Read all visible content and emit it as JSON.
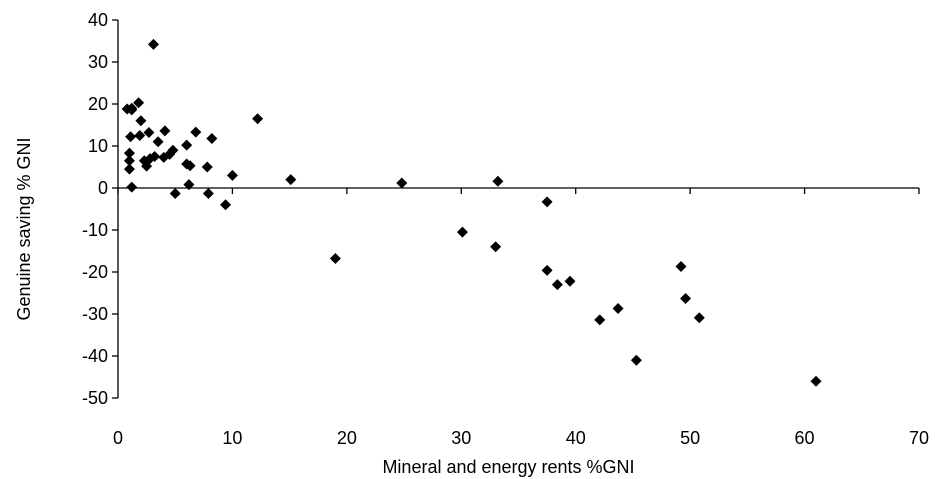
{
  "chart_data": {
    "type": "scatter",
    "title": "",
    "xlabel": "Mineral and energy rents %GNI",
    "ylabel": "Genuine saving % GNI",
    "xlim": [
      0,
      70
    ],
    "ylim": [
      -50,
      40
    ],
    "x_ticks": [
      0,
      10,
      20,
      30,
      40,
      50,
      60,
      70
    ],
    "y_ticks": [
      40,
      30,
      20,
      10,
      0,
      -10,
      -20,
      -30,
      -40,
      -50
    ],
    "x_tick_labels": [
      "0",
      "10",
      "20",
      "30",
      "40",
      "50",
      "60",
      "70"
    ],
    "y_tick_labels": [
      "40",
      "30",
      "20",
      "10",
      "0",
      "-10",
      "-20",
      "-30",
      "-40",
      "-50"
    ],
    "grid": false,
    "legend": "none",
    "marker": "diamond",
    "marker_color": "#000000",
    "series": [
      {
        "points": [
          [
            0.8,
            18.8
          ],
          [
            1.2,
            19.0
          ],
          [
            1.8,
            20.3
          ],
          [
            1.2,
            18.6
          ],
          [
            3.1,
            34.2
          ],
          [
            1.1,
            12.2
          ],
          [
            1.9,
            12.5
          ],
          [
            2.7,
            13.2
          ],
          [
            4.1,
            13.6
          ],
          [
            6.8,
            13.3
          ],
          [
            8.2,
            11.8
          ],
          [
            12.2,
            16.5
          ],
          [
            2.0,
            16.0
          ],
          [
            3.5,
            11.0
          ],
          [
            6.0,
            10.2
          ],
          [
            1.0,
            8.3
          ],
          [
            1.0,
            6.5
          ],
          [
            1.0,
            4.5
          ],
          [
            2.3,
            6.5
          ],
          [
            2.8,
            7.0
          ],
          [
            3.2,
            7.5
          ],
          [
            4.0,
            7.3
          ],
          [
            4.5,
            8.0
          ],
          [
            4.8,
            9.0
          ],
          [
            2.5,
            5.2
          ],
          [
            6.0,
            5.7
          ],
          [
            6.3,
            5.3
          ],
          [
            7.8,
            5.0
          ],
          [
            1.2,
            0.2
          ],
          [
            6.2,
            0.8
          ],
          [
            10.0,
            3.0
          ],
          [
            5.0,
            -1.3
          ],
          [
            7.9,
            -1.3
          ],
          [
            9.4,
            -4.0
          ],
          [
            15.1,
            2.0
          ],
          [
            24.8,
            1.2
          ],
          [
            33.2,
            1.6
          ],
          [
            19.0,
            -16.8
          ],
          [
            30.1,
            -10.5
          ],
          [
            33.0,
            -14.0
          ],
          [
            37.5,
            -3.3
          ],
          [
            37.5,
            -19.6
          ],
          [
            38.4,
            -23.0
          ],
          [
            39.5,
            -22.2
          ],
          [
            42.1,
            -31.4
          ],
          [
            43.7,
            -28.7
          ],
          [
            45.3,
            -41.0
          ],
          [
            49.2,
            -18.7
          ],
          [
            49.6,
            -26.3
          ],
          [
            50.8,
            -30.9
          ],
          [
            61.0,
            -46.0
          ]
        ]
      }
    ]
  }
}
